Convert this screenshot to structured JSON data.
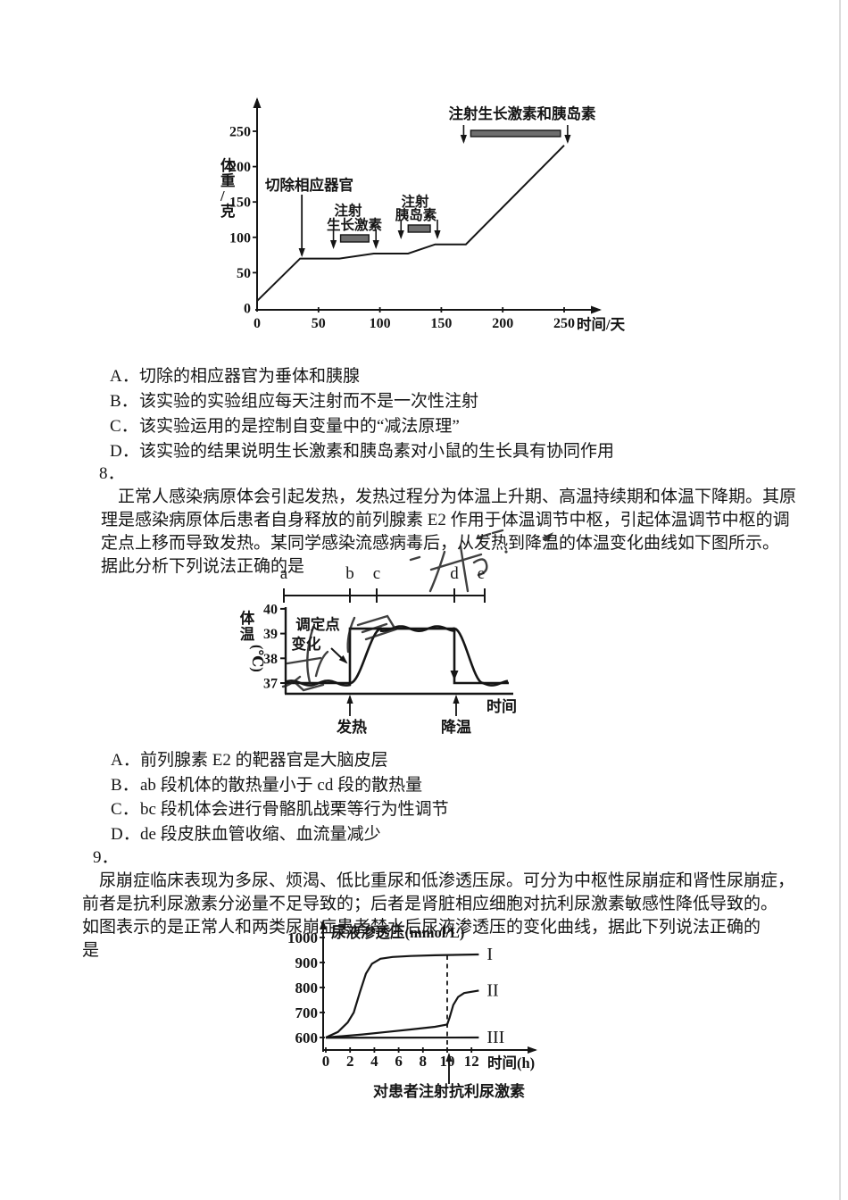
{
  "colors": {
    "ink": "#151515",
    "bar_fill": "#6e6e6e",
    "paper": "#ffffff",
    "edge": "#dcdcdc"
  },
  "q7": {
    "options": [
      {
        "label": "A．",
        "text": "切除的相应器官为垂体和胰腺"
      },
      {
        "label": "B．",
        "text": "该实验的实验组应每天注射而不是一次性注射"
      },
      {
        "label": "C．",
        "text": "该实验运用的是控制自变量中的“减法原理”"
      },
      {
        "label": "D．",
        "text": "该实验的结果说明生长激素和胰岛素对小鼠的生长具有协同作用"
      }
    ]
  },
  "q8": {
    "number": "8．",
    "lines": [
      "正常人感染病原体会引起发热，发热过程分为体温上升期、高温持续期和体温下降期。其原",
      "理是感染病原体后患者自身释放的前列腺素 E2 作用于体温调节中枢，引起体温调节中枢的调",
      "定点上移而导致发热。某同学感染流感病毒后，从发热到降温的体温变化曲线如下图所示。",
      "据此分析下列说法正确的是"
    ],
    "options": [
      {
        "label": "A．",
        "text": "前列腺素 E2 的靶器官是大脑皮层"
      },
      {
        "label": "B．",
        "text": "ab 段机体的散热量小于 cd 段的散热量"
      },
      {
        "label": "C．",
        "text": "bc 段机体会进行骨骼肌战栗等行为性调节"
      },
      {
        "label": "D．",
        "text": "de 段皮肤血管收缩、血流量减少"
      }
    ]
  },
  "q9": {
    "number": "9．",
    "lines": [
      "尿崩症临床表现为多尿、烦渴、低比重尿和低渗透压尿。可分为中枢性尿崩症和肾性尿崩症，",
      "前者是抗利尿激素分泌量不足导致的；后者是肾脏相应细胞对抗利尿激素敏感性降低导致的。",
      "如图表示的是正常人和两类尿崩症患者禁水后尿液渗透压的变化曲线，据此下列说法正确的",
      "是"
    ]
  },
  "chart_data": [
    {
      "type": "line",
      "title": "",
      "xlabel": "时间/天",
      "ylabel": "体重/克",
      "xticks": [
        0,
        50,
        100,
        150,
        200,
        250
      ],
      "yticks": [
        0,
        50,
        100,
        150,
        200,
        250
      ],
      "xlim": [
        0,
        275
      ],
      "ylim": [
        0,
        300
      ],
      "series": [
        {
          "name": "小鼠体重",
          "points": [
            [
              0,
              10
            ],
            [
              35,
              70
            ],
            [
              67,
              70
            ],
            [
              95,
              77
            ],
            [
              123,
              77
            ],
            [
              145,
              90
            ],
            [
              170,
              90
            ],
            [
              250,
              230
            ]
          ]
        }
      ],
      "annotations": {
        "excise_label": "切除相应器官",
        "excise_day": 35,
        "inject_gh_label": [
          "注射",
          "生长激素"
        ],
        "gh_bar_days": [
          68,
          91
        ],
        "inject_ins_label": [
          "注射",
          "胰岛素"
        ],
        "ins_bar_days": [
          123,
          141
        ],
        "inject_both_label": "注射生长激素和胰岛素",
        "both_bar_days": [
          174,
          247
        ]
      }
    },
    {
      "type": "line",
      "title": "",
      "xlabel": "时间",
      "ylabel": "体温(℃)",
      "yticks": [
        37,
        38,
        39,
        40
      ],
      "ylim": [
        36.5,
        40.5
      ],
      "segments": {
        "labels": [
          "a",
          "b",
          "c",
          "d",
          "e"
        ],
        "x": [
          0,
          2.88,
          4.08,
          7.56,
          8.92
        ]
      },
      "setpoint_label": [
        "调定点",
        "变化"
      ],
      "fever_label": "发热",
      "cool_label": "降温",
      "series": [
        {
          "name": "调定点",
          "style": "step",
          "points": [
            [
              0,
              37
            ],
            [
              2.88,
              37
            ],
            [
              2.88,
              39.2
            ],
            [
              7.56,
              39.2
            ],
            [
              7.56,
              37
            ],
            [
              10,
              37
            ]
          ]
        },
        {
          "name": "实际体温",
          "style": "wavy",
          "points": [
            [
              0,
              37
            ],
            [
              2.9,
              37
            ],
            [
              4.28,
              39.2
            ],
            [
              7.56,
              39.2
            ],
            [
              8.84,
              37
            ],
            [
              10,
              37
            ]
          ]
        }
      ]
    },
    {
      "type": "line",
      "title": "",
      "xlabel": "时间(h)",
      "ylabel": "尿液渗透压(mmol/L)",
      "xticks": [
        0,
        2,
        4,
        6,
        8,
        10,
        12
      ],
      "yticks": [
        600,
        700,
        800,
        900,
        1000
      ],
      "xlim": [
        0,
        13.5
      ],
      "ylim": [
        580,
        1040
      ],
      "injection_x": 10,
      "injection_label": "对患者注射抗利尿激素",
      "series": [
        {
          "name": "I",
          "points": [
            [
              0,
              600
            ],
            [
              1,
              622
            ],
            [
              1.8,
              660
            ],
            [
              2.3,
              700
            ],
            [
              2.8,
              780
            ],
            [
              3.3,
              855
            ],
            [
              3.8,
              895
            ],
            [
              4.5,
              915
            ],
            [
              5.5,
              922
            ],
            [
              7,
              926
            ],
            [
              9,
              929
            ],
            [
              10,
              930
            ],
            [
              12.6,
              932
            ]
          ]
        },
        {
          "name": "II",
          "points": [
            [
              0,
              600
            ],
            [
              1,
              604
            ],
            [
              3,
              612
            ],
            [
              5,
              622
            ],
            [
              7,
              632
            ],
            [
              9,
              643
            ],
            [
              10,
              652
            ],
            [
              10.2,
              680
            ],
            [
              10.5,
              730
            ],
            [
              10.9,
              762
            ],
            [
              11.4,
              778
            ],
            [
              12.6,
              788
            ]
          ]
        },
        {
          "name": "III",
          "points": [
            [
              0,
              599
            ],
            [
              12.6,
              600
            ]
          ]
        }
      ]
    }
  ]
}
